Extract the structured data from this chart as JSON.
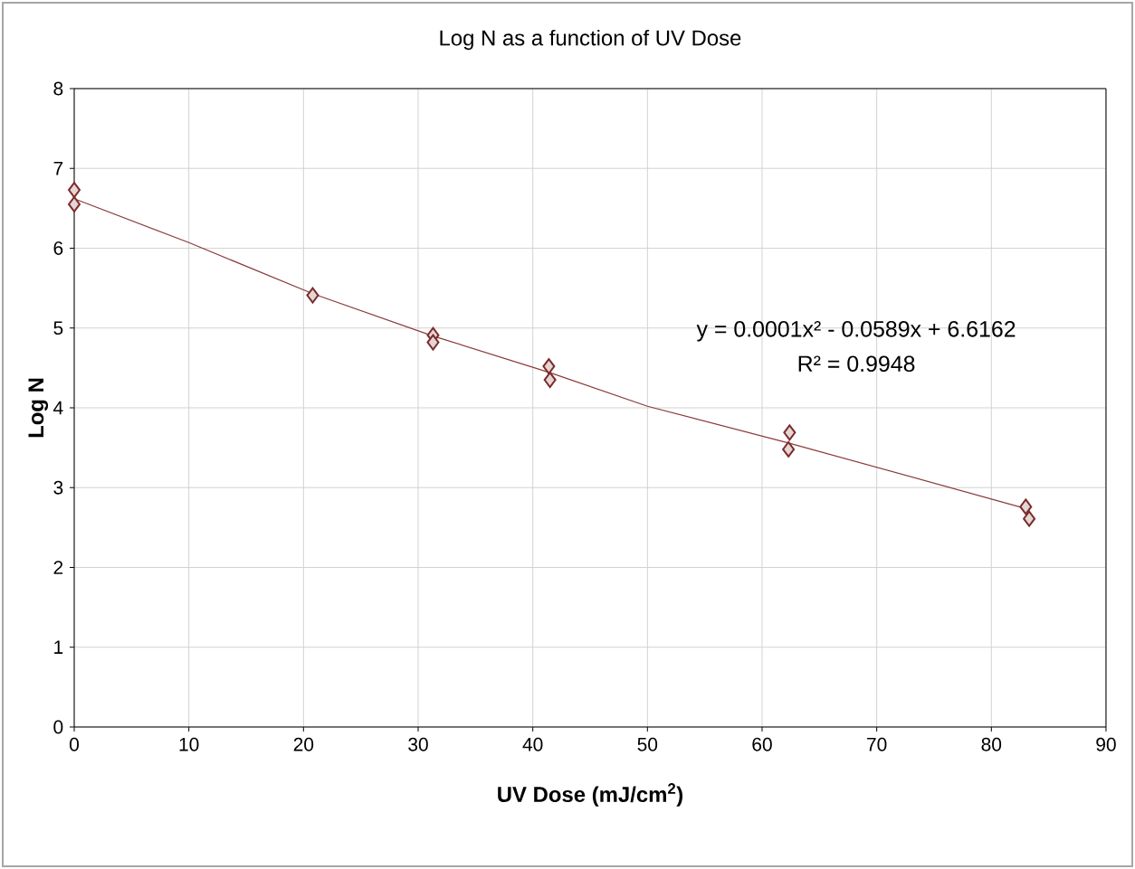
{
  "chart_data": {
    "type": "scatter",
    "title": "Log N as a function of UV Dose",
    "xlabel": "UV Dose (mJ/cm$^{2}$)",
    "ylabel": "Log N",
    "annotations": [
      "y = 0.0001x² - 0.0589x + 6.6162",
      "R² = 0.9948"
    ],
    "series": [
      {
        "color": "#7b2c2c",
        "marker": "diamond",
        "x": [
          0,
          0,
          20.8,
          31.3,
          31.3,
          41.4,
          41.5,
          62.4,
          62.3,
          83.0,
          83.3
        ],
        "values": [
          6.73,
          6.55,
          5.41,
          4.91,
          4.82,
          4.52,
          4.35,
          3.69,
          3.48,
          2.76,
          2.61
        ]
      },
      {
        "type": "line",
        "color": "#8b3a3a",
        "line_style": "solid",
        "x": [
          0,
          10,
          20.8,
          31.3,
          41.5,
          50,
          62.3,
          83.2
        ],
        "values": [
          6.62,
          6.07,
          5.43,
          4.9,
          4.44,
          4.02,
          3.56,
          2.73
        ]
      }
    ],
    "xlim": [
      0,
      90
    ],
    "ylim": [
      0,
      8
    ],
    "xticks": [
      0,
      10,
      20,
      30,
      40,
      50,
      60,
      70,
      80,
      90
    ],
    "yticks": [
      0,
      1,
      2,
      3,
      4,
      5,
      6,
      7,
      8
    ],
    "grid": true
  }
}
